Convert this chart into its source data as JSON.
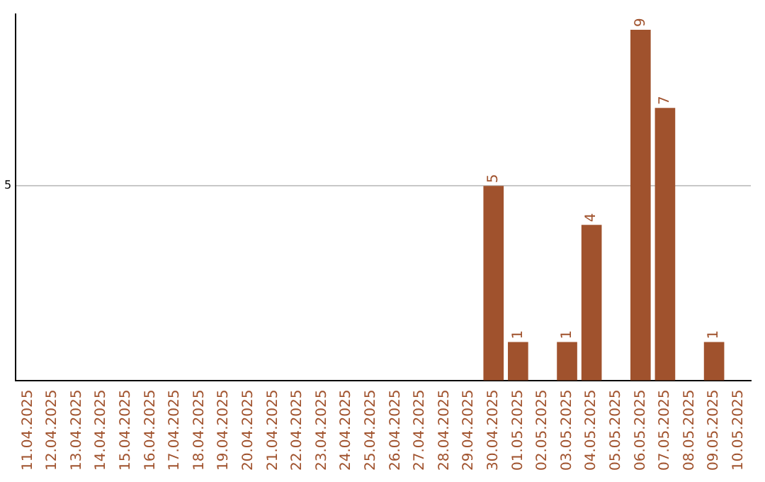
{
  "chart_data": {
    "type": "bar",
    "categories": [
      "11.04.2025",
      "12.04.2025",
      "13.04.2025",
      "14.04.2025",
      "15.04.2025",
      "16.04.2025",
      "17.04.2025",
      "18.04.2025",
      "19.04.2025",
      "20.04.2025",
      "21.04.2025",
      "22.04.2025",
      "23.04.2025",
      "24.04.2025",
      "25.04.2025",
      "26.04.2025",
      "27.04.2025",
      "28.04.2025",
      "29.04.2025",
      "30.04.2025",
      "01.05.2025",
      "02.05.2025",
      "03.05.2025",
      "04.05.2025",
      "05.05.2025",
      "06.05.2025",
      "07.05.2025",
      "08.05.2025",
      "09.05.2025",
      "10.05.2025"
    ],
    "values": [
      null,
      null,
      null,
      null,
      null,
      null,
      null,
      null,
      null,
      null,
      null,
      null,
      null,
      null,
      null,
      null,
      null,
      null,
      null,
      5,
      1,
      null,
      1,
      4,
      null,
      9,
      7,
      null,
      1,
      null
    ],
    "data_labels": true,
    "color": "#a0522d",
    "ylim": [
      0,
      9.4
    ],
    "yticks": [
      {
        "value": 0,
        "label": null
      },
      5
    ],
    "grid": "y",
    "legend": false
  }
}
